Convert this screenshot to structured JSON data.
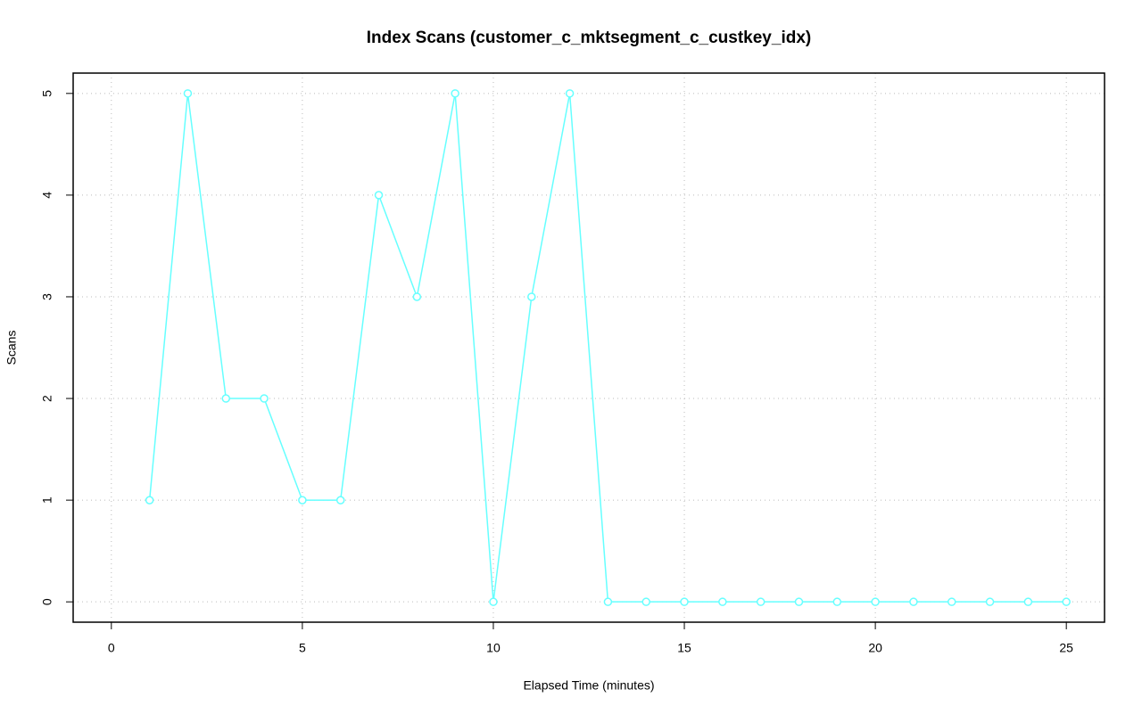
{
  "chart_data": {
    "type": "line",
    "title": "Index Scans (customer_c_mktsegment_c_custkey_idx)",
    "x_label": "Elapsed Time (minutes)",
    "y_label": "Scans",
    "x": [
      1,
      2,
      3,
      4,
      5,
      6,
      7,
      8,
      9,
      10,
      11,
      12,
      13,
      14,
      15,
      16,
      17,
      18,
      19,
      20,
      21,
      22,
      23,
      24,
      25
    ],
    "series": [
      {
        "color": "#66ffff",
        "values": [
          1,
          5,
          2,
          2,
          1,
          1,
          4,
          3,
          5,
          0,
          3,
          5,
          0,
          0,
          0,
          0,
          0,
          0,
          0,
          0,
          0,
          0,
          0,
          0,
          0
        ]
      }
    ],
    "xlim": [
      -1,
      26
    ],
    "ylim": [
      -0.2,
      5.2
    ],
    "xticks": [
      0,
      5,
      10,
      15,
      20,
      25
    ],
    "yticks": [
      0,
      1,
      2,
      3,
      4,
      5
    ],
    "grid": true
  }
}
